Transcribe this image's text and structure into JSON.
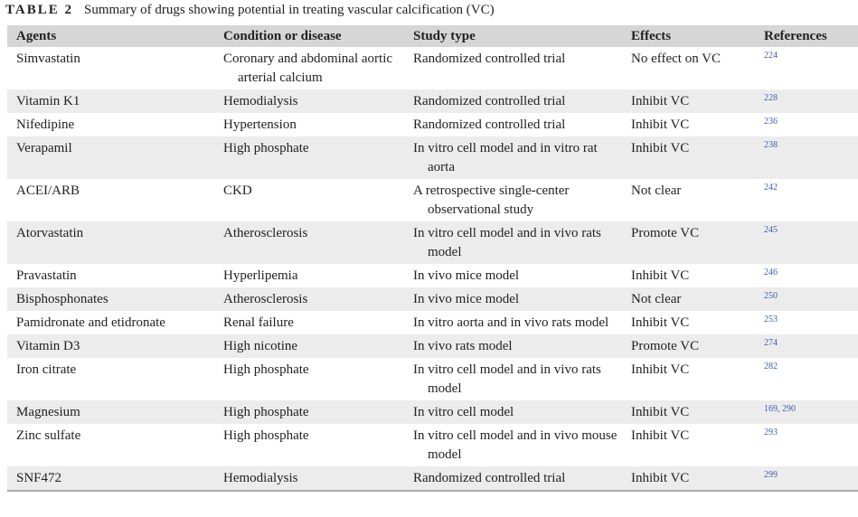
{
  "table_label": "TABLE 2",
  "caption": "Summary of drugs showing potential in treating vascular calcification (VC)",
  "table": {
    "headers": [
      "Agents",
      "Condition or disease",
      "Study type",
      "Effects",
      "References"
    ],
    "rows": [
      [
        "Simvastatin",
        "Coronary and abdominal aortic arterial calcium",
        "Randomized controlled trial",
        "No effect on VC",
        "224"
      ],
      [
        "Vitamin K1",
        "Hemodialysis",
        "Randomized controlled trial",
        "Inhibit VC",
        "228"
      ],
      [
        "Nifedipine",
        "Hypertension",
        "Randomized controlled trial",
        "Inhibit VC",
        "236"
      ],
      [
        "Verapamil",
        "High phosphate",
        "In vitro cell model and in vitro rat aorta",
        "Inhibit VC",
        "238"
      ],
      [
        "ACEI/ARB",
        "CKD",
        "A retrospective single-center observational study",
        "Not clear",
        "242"
      ],
      [
        "Atorvastatin",
        "Atherosclerosis",
        "In vitro cell model and in vivo rats model",
        "Promote VC",
        "245"
      ],
      [
        "Pravastatin",
        "Hyperlipemia",
        "In vivo mice model",
        "Inhibit VC",
        "246"
      ],
      [
        "Bisphosphonates",
        "Atherosclerosis",
        "In vivo mice model",
        "Not clear",
        "250"
      ],
      [
        "Pamidronate and etidronate",
        "Renal failure",
        "In vitro aorta and in vivo rats model",
        "Inhibit VC",
        "253"
      ],
      [
        "Vitamin D3",
        "High nicotine",
        "In vivo rats model",
        "Promote VC",
        "274"
      ],
      [
        "Iron citrate",
        "High phosphate",
        "In vitro cell model and in vivo rats model",
        "Inhibit VC",
        "282"
      ],
      [
        "Magnesium",
        "High phosphate",
        "In vitro cell model",
        "Inhibit VC",
        "169, 290"
      ],
      [
        "Zinc sulfate",
        "High phosphate",
        "In vitro cell model and in vivo mouse model",
        "Inhibit VC",
        "293"
      ],
      [
        "SNF472",
        "Hemodialysis",
        "Randomized controlled trial",
        "Inhibit VC",
        "299"
      ]
    ]
  }
}
